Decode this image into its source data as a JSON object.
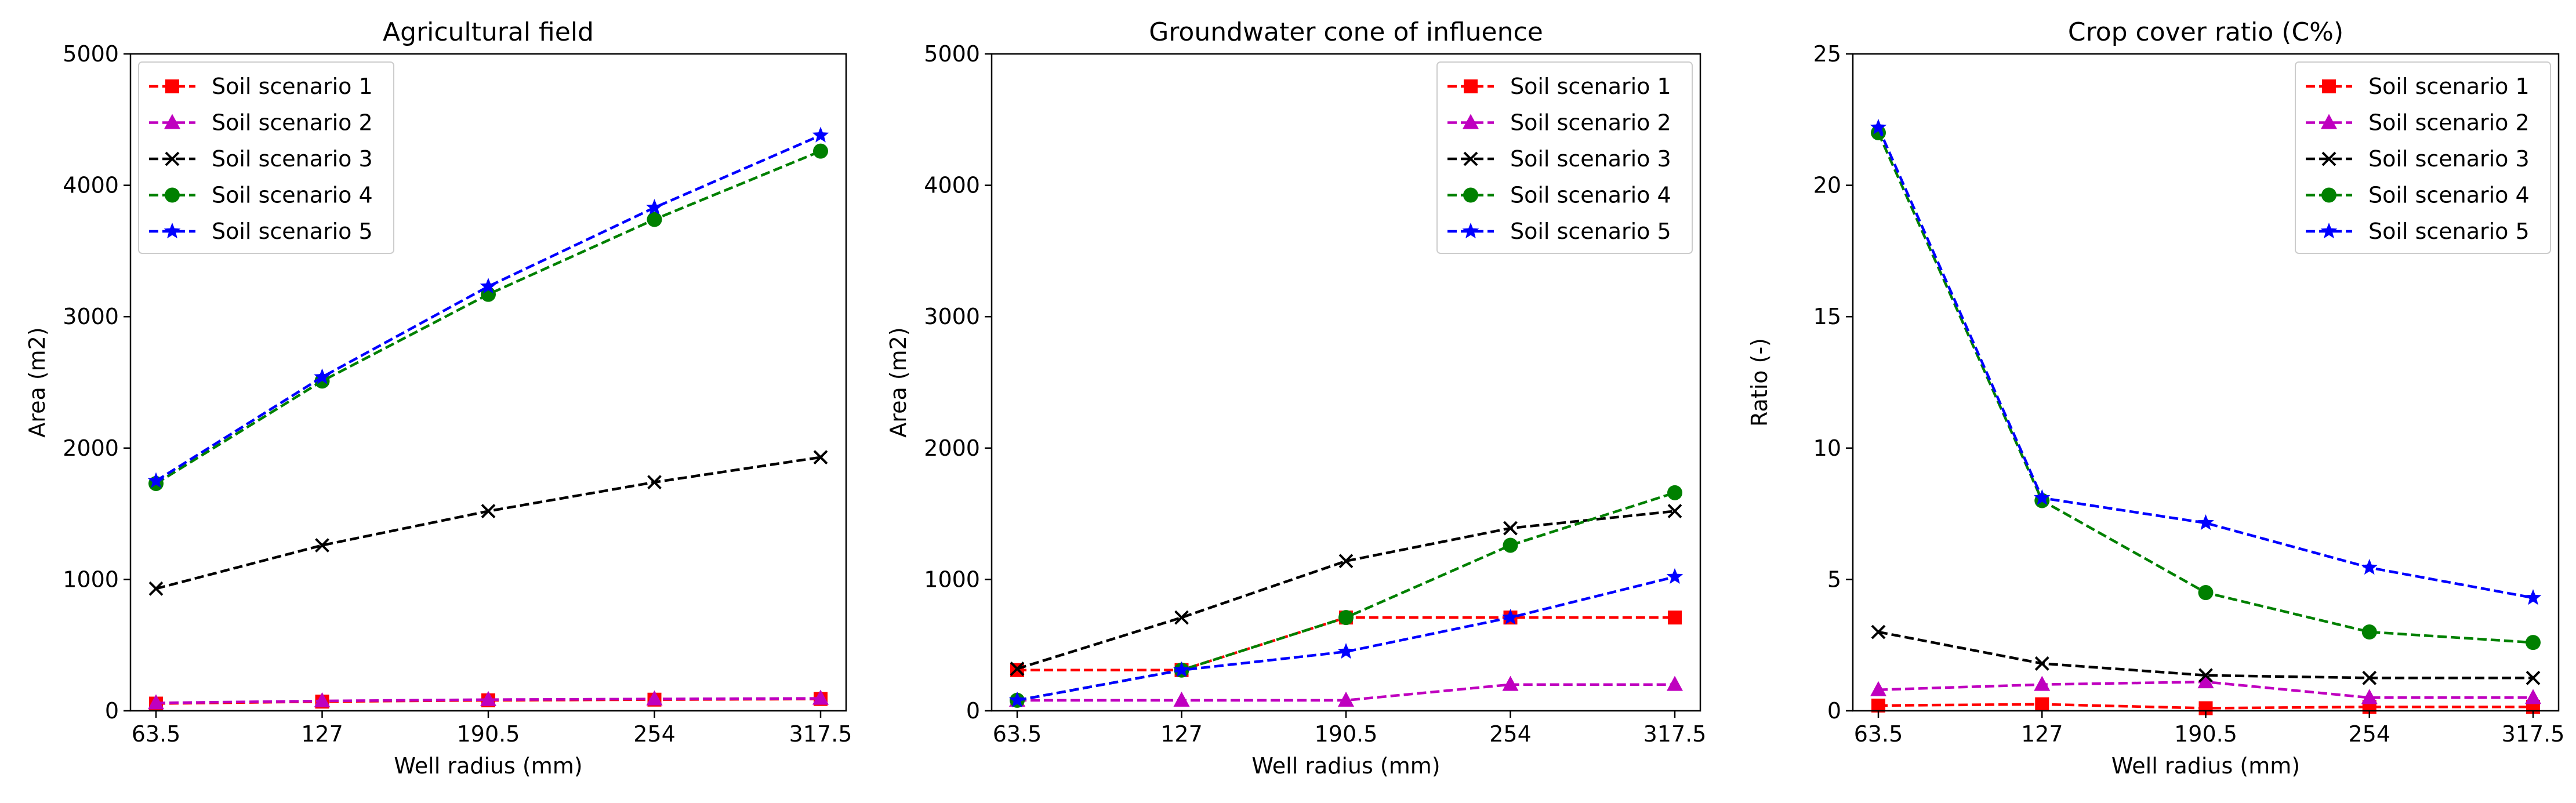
{
  "chart_data": [
    {
      "type": "line",
      "title": "Agricultural field",
      "xlabel": "Well radius (mm)",
      "ylabel": "Area (m2)",
      "categories": [
        "63.5",
        "127",
        "190.5",
        "254",
        "317.5"
      ],
      "yticks": [
        "0",
        "1000",
        "2000",
        "3000",
        "4000",
        "5000"
      ],
      "ylim": [
        0,
        5000
      ],
      "legend_position": "top-left",
      "series": [
        {
          "name": "Soil scenario 1",
          "values": [
            55,
            70,
            80,
            85,
            90
          ],
          "color": "#ff0000",
          "marker": "square"
        },
        {
          "name": "Soil scenario 2",
          "values": [
            60,
            75,
            85,
            90,
            95
          ],
          "color": "#bf00bf",
          "marker": "triangle"
        },
        {
          "name": "Soil scenario 3",
          "values": [
            930,
            1260,
            1520,
            1740,
            1930
          ],
          "color": "#000000",
          "marker": "x"
        },
        {
          "name": "Soil scenario 4",
          "values": [
            1730,
            2510,
            3170,
            3740,
            4260
          ],
          "color": "#008000",
          "marker": "circle"
        },
        {
          "name": "Soil scenario 5",
          "values": [
            1750,
            2540,
            3230,
            3830,
            4380
          ],
          "color": "#0000ff",
          "marker": "star"
        }
      ]
    },
    {
      "type": "line",
      "title": "Groundwater cone of influence",
      "xlabel": "Well radius (mm)",
      "ylabel": "Area (m2)",
      "categories": [
        "63.5",
        "127",
        "190.5",
        "254",
        "317.5"
      ],
      "yticks": [
        "0",
        "1000",
        "2000",
        "3000",
        "4000",
        "5000"
      ],
      "ylim": [
        0,
        5000
      ],
      "legend_position": "top-right",
      "series": [
        {
          "name": "Soil scenario 1",
          "values": [
            310,
            310,
            710,
            710,
            710
          ],
          "color": "#ff0000",
          "marker": "square"
        },
        {
          "name": "Soil scenario 2",
          "values": [
            80,
            80,
            80,
            200,
            200
          ],
          "color": "#bf00bf",
          "marker": "triangle"
        },
        {
          "name": "Soil scenario 3",
          "values": [
            320,
            710,
            1140,
            1390,
            1520
          ],
          "color": "#000000",
          "marker": "x"
        },
        {
          "name": "Soil scenario 4",
          "values": [
            80,
            310,
            710,
            1260,
            1660
          ],
          "color": "#008000",
          "marker": "circle"
        },
        {
          "name": "Soil scenario 5",
          "values": [
            80,
            310,
            450,
            710,
            1020
          ],
          "color": "#0000ff",
          "marker": "star"
        }
      ]
    },
    {
      "type": "line",
      "title": "Crop cover ratio (C%)",
      "xlabel": "Well radius (mm)",
      "ylabel": "Ratio (-)",
      "categories": [
        "63.5",
        "127",
        "190.5",
        "254",
        "317.5"
      ],
      "yticks": [
        "0",
        "5",
        "10",
        "15",
        "20",
        "25"
      ],
      "ylim": [
        0,
        25
      ],
      "legend_position": "top-right",
      "series": [
        {
          "name": "Soil scenario 1",
          "values": [
            0.2,
            0.25,
            0.1,
            0.15,
            0.15
          ],
          "color": "#ff0000",
          "marker": "square"
        },
        {
          "name": "Soil scenario 2",
          "values": [
            0.8,
            1.0,
            1.1,
            0.5,
            0.5
          ],
          "color": "#bf00bf",
          "marker": "triangle"
        },
        {
          "name": "Soil scenario 3",
          "values": [
            3.0,
            1.8,
            1.35,
            1.25,
            1.25
          ],
          "color": "#000000",
          "marker": "x"
        },
        {
          "name": "Soil scenario 4",
          "values": [
            22.0,
            8.0,
            4.5,
            3.0,
            2.6
          ],
          "color": "#008000",
          "marker": "circle"
        },
        {
          "name": "Soil scenario 5",
          "values": [
            22.2,
            8.1,
            7.15,
            5.45,
            4.3
          ],
          "color": "#0000ff",
          "marker": "star"
        }
      ]
    }
  ]
}
